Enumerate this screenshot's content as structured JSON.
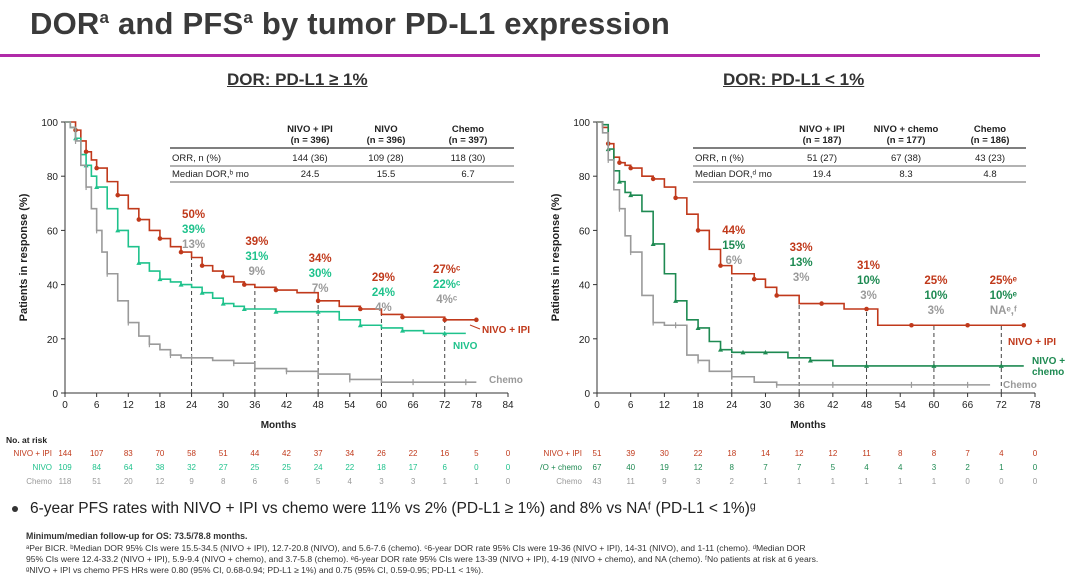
{
  "title": {
    "main_a": "DOR",
    "sup_a": "a",
    "main_b": " and PFS",
    "sup_b": "a",
    "main_c": " by tumor PD-L1 expression"
  },
  "corner_text": "",
  "colors": {
    "nivo_ipi": "#c0391b",
    "nivo": "#1fc28c",
    "nivo_chemo": "#1e8a52",
    "chemo": "#9a9a9a",
    "accent_rule": "#b02aa8"
  },
  "chart_data": [
    {
      "type": "line",
      "title": "DOR: PD-L1 ≥ 1%",
      "xlabel": "Months",
      "ylabel": "Patients in response (%)",
      "xlim": [
        0,
        84
      ],
      "ylim": [
        0,
        100
      ],
      "xticks": [
        0,
        6,
        12,
        18,
        24,
        30,
        36,
        42,
        48,
        54,
        60,
        66,
        72,
        78,
        84
      ],
      "yticks": [
        0,
        20,
        40,
        60,
        80,
        100
      ],
      "table": {
        "headers": [
          "",
          "NIVO + IPI\n(n = 396)",
          "NIVO\n(n = 396)",
          "Chemo\n(n = 397)"
        ],
        "rows": [
          [
            "ORR, n (%)",
            "144 (36)",
            "109 (28)",
            "118 (30)"
          ],
          [
            "Median DOR,ᵇ mo",
            "24.5",
            "15.5",
            "6.7"
          ]
        ]
      },
      "series": [
        {
          "name": "NIVO + IPI",
          "color_key": "nivo_ipi",
          "x": [
            0,
            1,
            2,
            3,
            4,
            5,
            6,
            8,
            10,
            12,
            14,
            16,
            18,
            20,
            22,
            24,
            26,
            28,
            30,
            32,
            34,
            36,
            40,
            44,
            48,
            52,
            56,
            60,
            64,
            68,
            72,
            76,
            78
          ],
          "y": [
            100,
            100,
            97,
            93,
            89,
            86,
            83,
            78,
            73,
            68,
            64,
            60,
            57,
            54,
            52,
            50,
            47,
            45,
            43,
            41,
            40,
            39,
            38,
            37,
            34,
            32,
            31,
            29,
            28,
            28,
            27,
            27,
            27
          ]
        },
        {
          "name": "NIVO",
          "color_key": "nivo",
          "x": [
            0,
            1,
            2,
            3,
            4,
            5,
            6,
            8,
            10,
            12,
            14,
            16,
            18,
            20,
            22,
            24,
            26,
            28,
            30,
            32,
            34,
            36,
            40,
            44,
            48,
            52,
            56,
            60,
            64,
            68,
            72,
            76
          ],
          "y": [
            100,
            98,
            94,
            88,
            84,
            80,
            76,
            68,
            60,
            54,
            48,
            45,
            42,
            41,
            40,
            39,
            37,
            35,
            33,
            32,
            31,
            31,
            30,
            30,
            30,
            27,
            25,
            24,
            23,
            22,
            22,
            22
          ]
        },
        {
          "name": "Chemo",
          "color_key": "chemo",
          "x": [
            0,
            1,
            2,
            3,
            4,
            5,
            6,
            7,
            8,
            10,
            12,
            14,
            16,
            18,
            20,
            22,
            24,
            28,
            32,
            36,
            42,
            48,
            54,
            60,
            66,
            72,
            76,
            78
          ],
          "y": [
            100,
            98,
            93,
            84,
            76,
            68,
            60,
            52,
            44,
            34,
            26,
            21,
            18,
            16,
            14,
            13,
            13,
            12,
            11,
            9,
            8,
            7,
            5,
            4,
            4,
            4,
            4,
            4
          ]
        }
      ],
      "annotations": [
        {
          "x": 24,
          "values": [
            "50%",
            "39%",
            "13%"
          ]
        },
        {
          "x": 36,
          "values": [
            "39%",
            "31%",
            "9%"
          ]
        },
        {
          "x": 48,
          "values": [
            "34%",
            "30%",
            "7%"
          ]
        },
        {
          "x": 60,
          "values": [
            "29%",
            "24%",
            "4%"
          ]
        },
        {
          "x": 72,
          "values": [
            "27%ᶜ",
            "22%ᶜ",
            "4%ᶜ"
          ]
        }
      ],
      "legend_labels": [
        "NIVO + IPI",
        "NIVO",
        "Chemo"
      ],
      "at_risk": {
        "title": "No. at risk",
        "rows": [
          {
            "label": "NIVO + IPI",
            "values": [
              "144",
              "107",
              "83",
              "70",
              "58",
              "51",
              "44",
              "42",
              "37",
              "34",
              "26",
              "22",
              "16",
              "5",
              "0"
            ]
          },
          {
            "label": "NIVO",
            "values": [
              "109",
              "84",
              "64",
              "38",
              "32",
              "27",
              "25",
              "25",
              "24",
              "22",
              "18",
              "17",
              "6",
              "0",
              "0"
            ]
          },
          {
            "label": "Chemo",
            "values": [
              "118",
              "51",
              "20",
              "12",
              "9",
              "8",
              "6",
              "6",
              "5",
              "4",
              "3",
              "3",
              "1",
              "1",
              "0"
            ]
          }
        ]
      }
    },
    {
      "type": "line",
      "title": "DOR: PD-L1 < 1%",
      "xlabel": "Months",
      "ylabel": "Patients in response (%)",
      "xlim": [
        0,
        78
      ],
      "ylim": [
        0,
        100
      ],
      "xticks": [
        0,
        6,
        12,
        18,
        24,
        30,
        36,
        42,
        48,
        54,
        60,
        66,
        72,
        78
      ],
      "yticks": [
        0,
        20,
        40,
        60,
        80,
        100
      ],
      "table": {
        "headers": [
          "",
          "NIVO + IPI\n(n = 187)",
          "NIVO + chemo\n(n = 177)",
          "Chemo\n(n = 186)"
        ],
        "rows": [
          [
            "ORR, n (%)",
            "51 (27)",
            "67 (38)",
            "43 (23)"
          ],
          [
            "Median DOR,ᵈ mo",
            "19.4",
            "8.3",
            "4.8"
          ]
        ]
      },
      "series": [
        {
          "name": "NIVO + IPI",
          "color_key": "nivo_ipi",
          "x": [
            0,
            1,
            2,
            3,
            4,
            5,
            6,
            8,
            10,
            12,
            14,
            16,
            18,
            20,
            22,
            24,
            28,
            30,
            32,
            36,
            40,
            44,
            48,
            50,
            56,
            60,
            66,
            72,
            76
          ],
          "y": [
            100,
            98,
            92,
            87,
            85,
            84,
            83,
            80,
            79,
            76,
            72,
            66,
            60,
            53,
            47,
            44,
            42,
            39,
            36,
            33,
            33,
            31,
            31,
            25,
            25,
            25,
            25,
            25,
            25
          ]
        },
        {
          "name": "NIVO + chemo",
          "color_key": "nivo_chemo",
          "x": [
            0,
            1,
            2,
            3,
            4,
            5,
            6,
            8,
            10,
            12,
            14,
            16,
            18,
            20,
            22,
            24,
            26,
            28,
            30,
            34,
            38,
            42,
            48,
            54,
            60,
            66,
            72,
            76
          ],
          "y": [
            100,
            99,
            90,
            82,
            78,
            74,
            73,
            67,
            55,
            44,
            34,
            27,
            24,
            19,
            16,
            15,
            15,
            15,
            15,
            13,
            12,
            10,
            10,
            10,
            10,
            10,
            10,
            10
          ]
        },
        {
          "name": "Chemo",
          "color_key": "chemo",
          "x": [
            0,
            1,
            2,
            3,
            4,
            5,
            6,
            8,
            10,
            12,
            14,
            16,
            18,
            20,
            24,
            28,
            32,
            36,
            42,
            48,
            56,
            60,
            66,
            70
          ],
          "y": [
            100,
            96,
            86,
            75,
            68,
            58,
            52,
            36,
            26,
            25,
            25,
            14,
            12,
            8,
            6,
            4,
            3,
            3,
            3,
            3,
            3,
            3,
            3,
            3
          ]
        }
      ],
      "annotations": [
        {
          "x": 24,
          "values": [
            "44%",
            "15%",
            "6%"
          ]
        },
        {
          "x": 36,
          "values": [
            "33%",
            "13%",
            "3%"
          ]
        },
        {
          "x": 48,
          "values": [
            "31%",
            "10%",
            "3%"
          ]
        },
        {
          "x": 60,
          "values": [
            "25%",
            "10%",
            "3%"
          ]
        },
        {
          "x": 72,
          "values": [
            "25%ᵉ",
            "10%ᵉ",
            "NAᵉ,ᶠ"
          ]
        }
      ],
      "legend_labels": [
        "NIVO + IPI",
        "NIVO +\nchemo",
        "Chemo"
      ],
      "at_risk": {
        "title": "",
        "rows": [
          {
            "label": "NIVO + IPI",
            "values": [
              "51",
              "39",
              "30",
              "22",
              "18",
              "14",
              "12",
              "12",
              "11",
              "8",
              "8",
              "7",
              "4",
              "0"
            ]
          },
          {
            "label": "NIVO + chemo",
            "values": [
              "67",
              "40",
              "19",
              "12",
              "8",
              "7",
              "7",
              "5",
              "4",
              "4",
              "3",
              "2",
              "1",
              "0"
            ]
          },
          {
            "label": "Chemo",
            "values": [
              "43",
              "11",
              "9",
              "3",
              "2",
              "1",
              "1",
              "1",
              "1",
              "1",
              "1",
              "0",
              "0",
              "0"
            ]
          }
        ]
      }
    }
  ],
  "bullet": "6-year PFS rates with NIVO + IPI vs chemo were 11% vs 2% (PD-L1 ≥ 1%) and 8% vs NAᶠ (PD-L1 < 1%)ᵍ",
  "footnotes": {
    "followup": "Minimum/median follow-up for OS: 73.5/78.8 months.",
    "line1": "ᵃPer BICR. ᵇMedian DOR 95% CIs were 15.5-34.5 (NIVO + IPI), 12.7-20.8 (NIVO), and 5.6-7.6 (chemo). ᶜ6-year DOR rate 95% CIs were 19-36 (NIVO + IPI), 14-31 (NIVO), and 1-11 (chemo). ᵈMedian DOR",
    "line2": "95% CIs were 12.4-33.2 (NIVO + IPI), 5.9-9.4 (NIVO + chemo), and 3.7-5.8 (chemo). ᵉ6-year DOR rate 95% CIs were 13-39 (NIVO + IPI), 4-19 (NIVO + chemo), and NA (chemo). ᶠNo patients at risk at 6 years.",
    "line3": "ᵍNIVO + IPI vs chemo PFS HRs were 0.80 (95% CI, 0.68-0.94; PD-L1 ≥ 1%) and 0.75 (95% CI, 0.59-0.95; PD-L1 < 1%)."
  }
}
